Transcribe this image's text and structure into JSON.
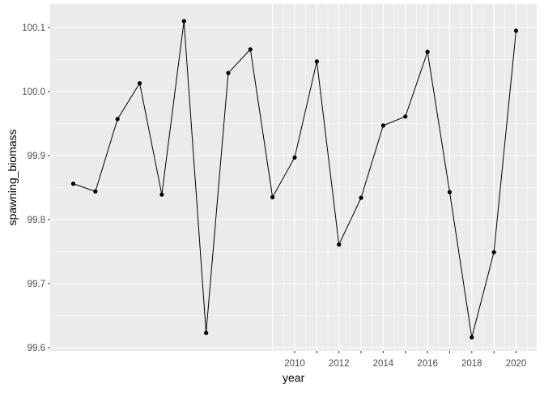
{
  "chart_data": {
    "type": "line",
    "xlabel": "year",
    "ylabel": "spawning_biomass",
    "x": [
      2000,
      2001,
      2002,
      2003,
      2004,
      2005,
      2006,
      2007,
      2008,
      2009,
      2010,
      2011,
      2012,
      2013,
      2014,
      2015,
      2016,
      2017,
      2018,
      2019,
      2020
    ],
    "y": [
      99.856,
      99.844,
      99.957,
      100.013,
      99.839,
      100.11,
      99.623,
      100.029,
      100.066,
      99.835,
      99.897,
      100.047,
      99.761,
      99.834,
      99.947,
      99.961,
      100.062,
      99.843,
      99.616,
      99.749,
      100.095
    ],
    "x_ticks": [
      "2010",
      "2012",
      "2014",
      "2016",
      "2018",
      "2020"
    ],
    "y_ticks": [
      "99.6",
      "99.7",
      "99.8",
      "99.9",
      "100.0",
      "100.1"
    ],
    "ylim": [
      99.59,
      100.125
    ],
    "grid": true,
    "colors": {
      "panel": "#ebebeb",
      "grid": "#ffffff",
      "line": "#000000"
    }
  }
}
